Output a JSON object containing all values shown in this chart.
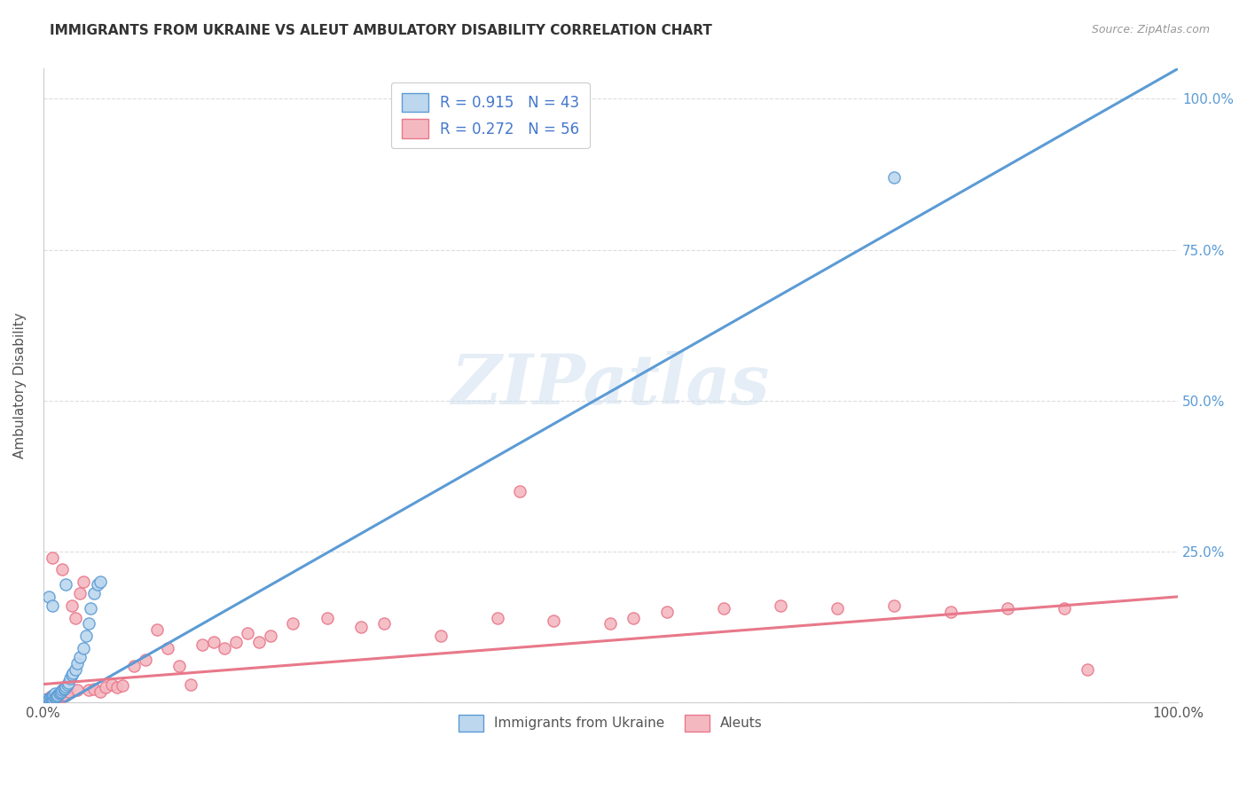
{
  "title": "IMMIGRANTS FROM UKRAINE VS ALEUT AMBULATORY DISABILITY CORRELATION CHART",
  "source": "Source: ZipAtlas.com",
  "ylabel": "Ambulatory Disability",
  "legend_label1": "Immigrants from Ukraine",
  "legend_label2": "Aleuts",
  "R1": 0.915,
  "N1": 43,
  "R2": 0.272,
  "N2": 56,
  "color_blue": "#5b9bd5",
  "color_blue_fill": "#bdd7ee",
  "color_pink": "#e8788a",
  "color_pink_fill": "#f4b8c1",
  "watermark": "ZIPatlas",
  "blue_scatter_x": [
    0.002,
    0.003,
    0.004,
    0.005,
    0.006,
    0.006,
    0.007,
    0.007,
    0.008,
    0.008,
    0.009,
    0.009,
    0.01,
    0.01,
    0.011,
    0.012,
    0.013,
    0.014,
    0.015,
    0.016,
    0.017,
    0.018,
    0.019,
    0.02,
    0.021,
    0.022,
    0.024,
    0.025,
    0.026,
    0.028,
    0.03,
    0.032,
    0.035,
    0.038,
    0.04,
    0.042,
    0.045,
    0.048,
    0.05,
    0.005,
    0.008,
    0.02,
    0.75
  ],
  "blue_scatter_y": [
    0.005,
    0.002,
    0.003,
    0.004,
    0.003,
    0.006,
    0.004,
    0.008,
    0.005,
    0.01,
    0.006,
    0.012,
    0.007,
    0.015,
    0.009,
    0.01,
    0.012,
    0.014,
    0.016,
    0.018,
    0.02,
    0.022,
    0.024,
    0.026,
    0.03,
    0.032,
    0.04,
    0.045,
    0.048,
    0.055,
    0.065,
    0.075,
    0.09,
    0.11,
    0.13,
    0.155,
    0.18,
    0.195,
    0.2,
    0.175,
    0.16,
    0.195,
    0.87
  ],
  "pink_scatter_x": [
    0.003,
    0.005,
    0.007,
    0.008,
    0.01,
    0.012,
    0.013,
    0.015,
    0.017,
    0.018,
    0.02,
    0.022,
    0.025,
    0.028,
    0.03,
    0.032,
    0.035,
    0.04,
    0.045,
    0.05,
    0.055,
    0.06,
    0.065,
    0.07,
    0.08,
    0.09,
    0.1,
    0.11,
    0.12,
    0.13,
    0.14,
    0.15,
    0.16,
    0.17,
    0.18,
    0.19,
    0.2,
    0.22,
    0.25,
    0.28,
    0.3,
    0.35,
    0.4,
    0.42,
    0.45,
    0.5,
    0.52,
    0.55,
    0.6,
    0.65,
    0.7,
    0.75,
    0.8,
    0.85,
    0.9,
    0.92
  ],
  "pink_scatter_y": [
    0.005,
    0.008,
    0.01,
    0.24,
    0.006,
    0.012,
    0.008,
    0.015,
    0.22,
    0.01,
    0.012,
    0.018,
    0.16,
    0.14,
    0.02,
    0.18,
    0.2,
    0.02,
    0.022,
    0.018,
    0.025,
    0.03,
    0.025,
    0.028,
    0.06,
    0.07,
    0.12,
    0.09,
    0.06,
    0.03,
    0.095,
    0.1,
    0.09,
    0.1,
    0.115,
    0.1,
    0.11,
    0.13,
    0.14,
    0.125,
    0.13,
    0.11,
    0.14,
    0.35,
    0.135,
    0.13,
    0.14,
    0.15,
    0.155,
    0.16,
    0.155,
    0.16,
    0.15,
    0.155,
    0.155,
    0.055
  ],
  "blue_line_x": [
    0.0,
    1.0
  ],
  "blue_line_y": [
    -0.02,
    1.05
  ],
  "pink_line_x": [
    0.0,
    1.0
  ],
  "pink_line_y": [
    0.03,
    0.175
  ],
  "xlim": [
    0.0,
    1.0
  ],
  "ylim": [
    0.0,
    1.05
  ],
  "yticks": [
    0.0,
    0.25,
    0.5,
    0.75,
    1.0
  ],
  "ytick_labels_right": [
    "",
    "25.0%",
    "50.0%",
    "75.0%",
    "100.0%"
  ],
  "xticks": [
    0.0,
    0.25,
    0.5,
    0.75,
    1.0
  ],
  "xtick_labels": [
    "0.0%",
    "",
    "",
    "",
    "100.0%"
  ],
  "grid_color": "#dddddd",
  "title_fontsize": 11,
  "source_fontsize": 9,
  "axis_label_fontsize": 11,
  "tick_fontsize": 11,
  "right_tick_color": "#5b9bd5",
  "legend_border_color": "#cccccc",
  "legend_text_color": "#4477cc"
}
